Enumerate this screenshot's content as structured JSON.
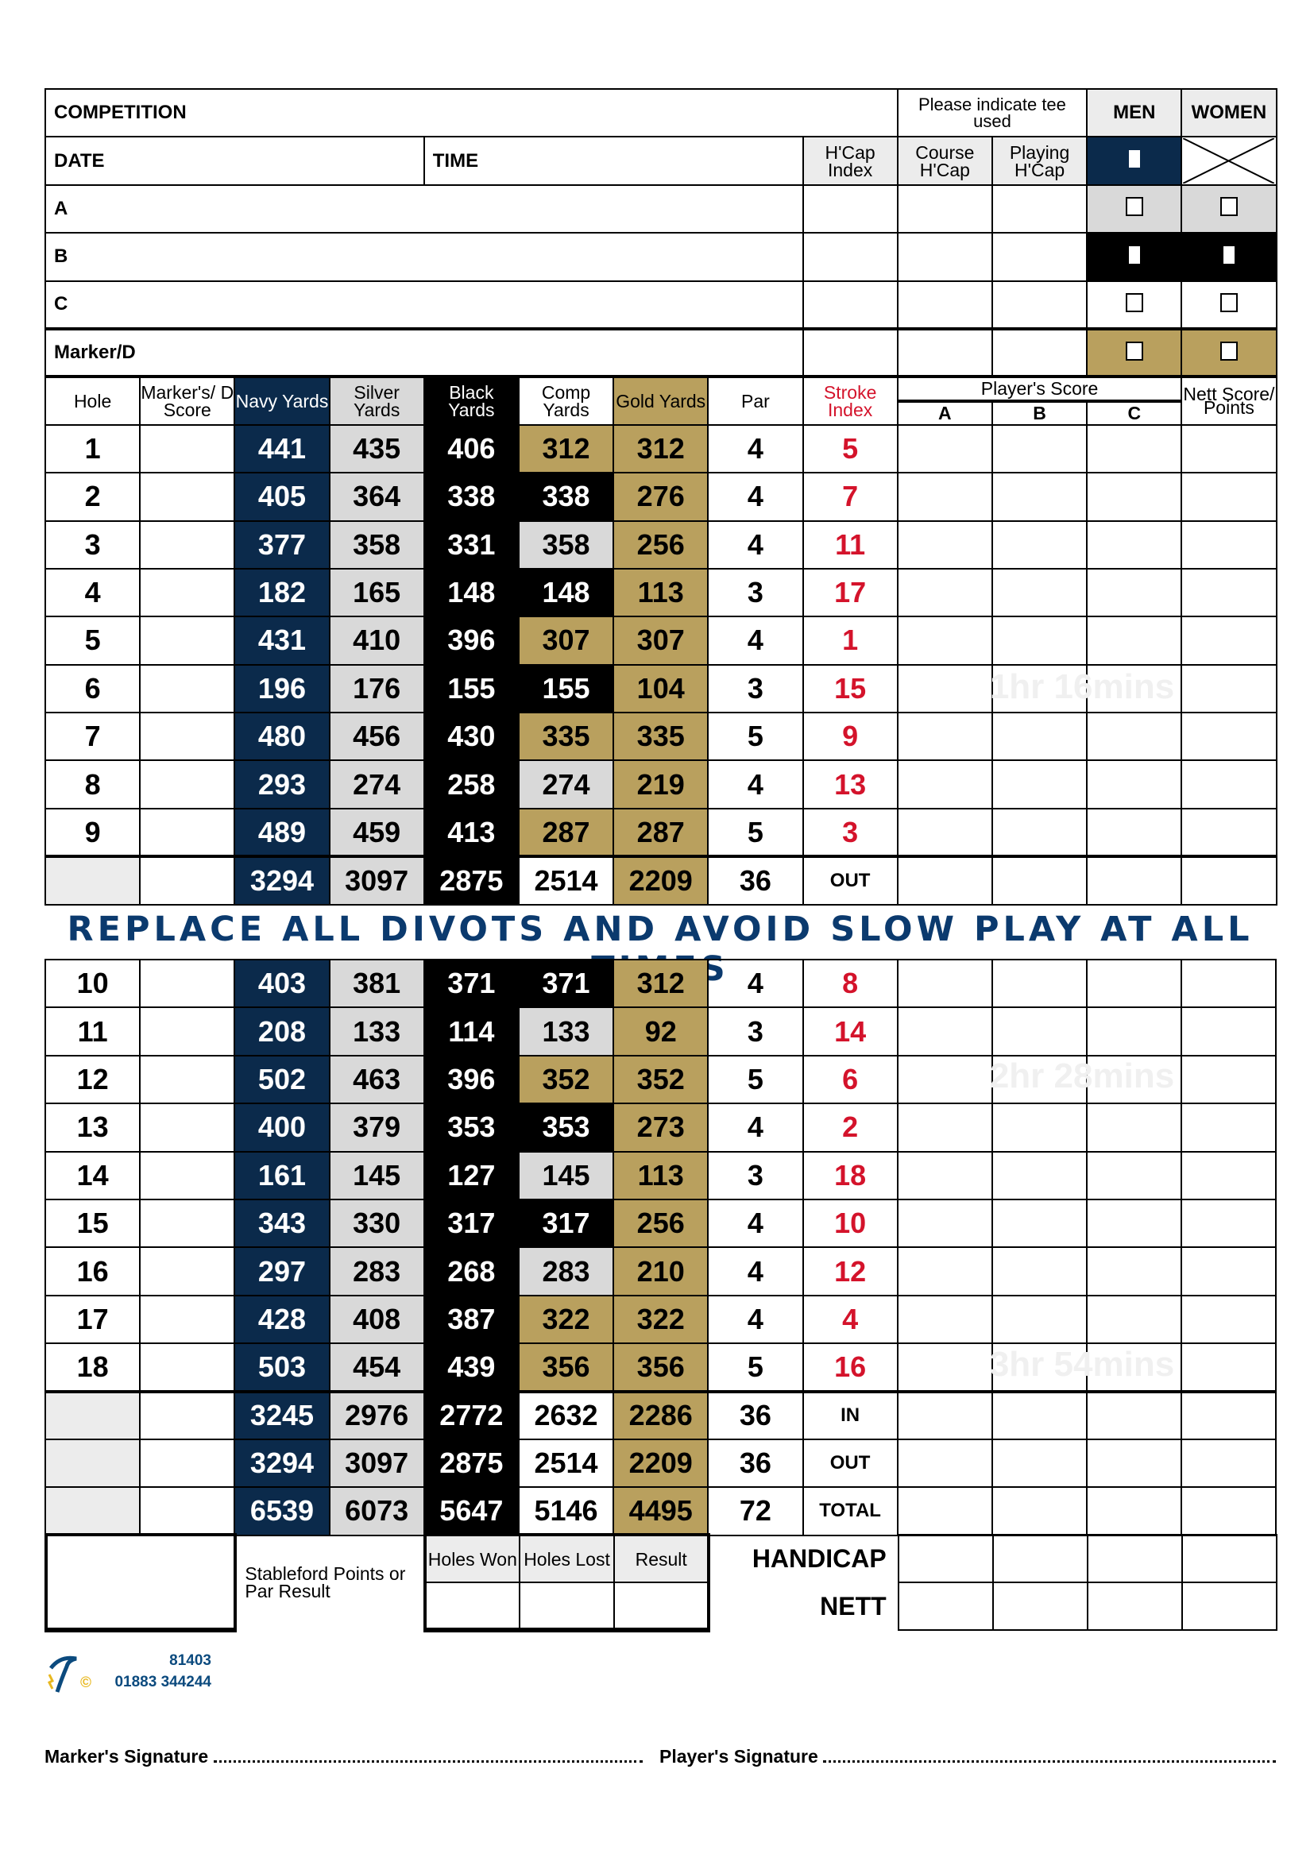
{
  "header": {
    "competition": "COMPETITION",
    "tee_prompt": "Please indicate tee used",
    "men": "MEN",
    "women": "WOMEN",
    "date": "DATE",
    "time": "TIME",
    "hcap_index": "H'Cap Index",
    "course_hcap": "Course H'Cap",
    "playing_hcap": "Playing H'Cap",
    "players": [
      {
        "label": "A",
        "tee_color": "#d9d9d9"
      },
      {
        "label": "B",
        "tee_color": "#000000"
      },
      {
        "label": "C",
        "tee_color": "#ffffff"
      },
      {
        "label": "Marker/D",
        "tee_color": "#b9a05e"
      }
    ]
  },
  "columns": {
    "hole": "Hole",
    "marker": "Marker's/ D Score",
    "navy": "Navy Yards",
    "silver": "Silver Yards",
    "black": "Black Yards",
    "comp": "Comp Yards",
    "gold": "Gold Yards",
    "par": "Par",
    "stroke_index": "Stroke Index",
    "players_score": "Player's Score",
    "score_a": "A",
    "score_b": "B",
    "score_c": "C",
    "nett": "Nett Score/ Points"
  },
  "colors": {
    "navy": "#0b2a4b",
    "silver": "#d9d9d9",
    "black": "#000000",
    "gold": "#b9a05e",
    "stroke_index": "#d4132b",
    "banner": "#0b3a6e"
  },
  "front_nine": [
    {
      "hole": "1",
      "navy": "441",
      "silver": "435",
      "black": "406",
      "comp": "312",
      "comp_tee": "gold",
      "gold": "312",
      "par": "4",
      "si": "5"
    },
    {
      "hole": "2",
      "navy": "405",
      "silver": "364",
      "black": "338",
      "comp": "338",
      "comp_tee": "black",
      "gold": "276",
      "par": "4",
      "si": "7"
    },
    {
      "hole": "3",
      "navy": "377",
      "silver": "358",
      "black": "331",
      "comp": "358",
      "comp_tee": "silver",
      "gold": "256",
      "par": "4",
      "si": "11"
    },
    {
      "hole": "4",
      "navy": "182",
      "silver": "165",
      "black": "148",
      "comp": "148",
      "comp_tee": "black",
      "gold": "113",
      "par": "3",
      "si": "17"
    },
    {
      "hole": "5",
      "navy": "431",
      "silver": "410",
      "black": "396",
      "comp": "307",
      "comp_tee": "gold",
      "gold": "307",
      "par": "4",
      "si": "1"
    },
    {
      "hole": "6",
      "navy": "196",
      "silver": "176",
      "black": "155",
      "comp": "155",
      "comp_tee": "black",
      "gold": "104",
      "par": "3",
      "si": "15"
    },
    {
      "hole": "7",
      "navy": "480",
      "silver": "456",
      "black": "430",
      "comp": "335",
      "comp_tee": "gold",
      "gold": "335",
      "par": "5",
      "si": "9"
    },
    {
      "hole": "8",
      "navy": "293",
      "silver": "274",
      "black": "258",
      "comp": "274",
      "comp_tee": "silver",
      "gold": "219",
      "par": "4",
      "si": "13"
    },
    {
      "hole": "9",
      "navy": "489",
      "silver": "459",
      "black": "413",
      "comp": "287",
      "comp_tee": "gold",
      "gold": "287",
      "par": "5",
      "si": "3"
    }
  ],
  "out_total": {
    "navy": "3294",
    "silver": "3097",
    "black": "2875",
    "comp": "2514",
    "gold": "2209",
    "par": "36",
    "label": "OUT"
  },
  "banner": "REPLACE ALL DIVOTS AND AVOID SLOW PLAY AT ALL TIMES",
  "back_nine": [
    {
      "hole": "10",
      "navy": "403",
      "silver": "381",
      "black": "371",
      "comp": "371",
      "comp_tee": "black",
      "gold": "312",
      "par": "4",
      "si": "8"
    },
    {
      "hole": "11",
      "navy": "208",
      "silver": "133",
      "black": "114",
      "comp": "133",
      "comp_tee": "silver",
      "gold": "92",
      "par": "3",
      "si": "14"
    },
    {
      "hole": "12",
      "navy": "502",
      "silver": "463",
      "black": "396",
      "comp": "352",
      "comp_tee": "gold",
      "gold": "352",
      "par": "5",
      "si": "6"
    },
    {
      "hole": "13",
      "navy": "400",
      "silver": "379",
      "black": "353",
      "comp": "353",
      "comp_tee": "black",
      "gold": "273",
      "par": "4",
      "si": "2"
    },
    {
      "hole": "14",
      "navy": "161",
      "silver": "145",
      "black": "127",
      "comp": "145",
      "comp_tee": "silver",
      "gold": "113",
      "par": "3",
      "si": "18"
    },
    {
      "hole": "15",
      "navy": "343",
      "silver": "330",
      "black": "317",
      "comp": "317",
      "comp_tee": "black",
      "gold": "256",
      "par": "4",
      "si": "10"
    },
    {
      "hole": "16",
      "navy": "297",
      "silver": "283",
      "black": "268",
      "comp": "283",
      "comp_tee": "silver",
      "gold": "210",
      "par": "4",
      "si": "12"
    },
    {
      "hole": "17",
      "navy": "428",
      "silver": "408",
      "black": "387",
      "comp": "322",
      "comp_tee": "gold",
      "gold": "322",
      "par": "4",
      "si": "4"
    },
    {
      "hole": "18",
      "navy": "503",
      "silver": "454",
      "black": "439",
      "comp": "356",
      "comp_tee": "gold",
      "gold": "356",
      "par": "5",
      "si": "16"
    }
  ],
  "totals": [
    {
      "navy": "3245",
      "silver": "2976",
      "black": "2772",
      "comp": "2632",
      "gold": "2286",
      "par": "36",
      "label": "IN"
    },
    {
      "navy": "3294",
      "silver": "3097",
      "black": "2875",
      "comp": "2514",
      "gold": "2209",
      "par": "36",
      "label": "OUT"
    },
    {
      "navy": "6539",
      "silver": "6073",
      "black": "5647",
      "comp": "5146",
      "gold": "4495",
      "par": "72",
      "label": "TOTAL"
    }
  ],
  "pace_marks": [
    "1hr 16mins",
    "2hr 28mins",
    "3hr 54mins"
  ],
  "footer": {
    "stableford": "Stableford Points or Par Result",
    "holes_won": "Holes Won",
    "holes_lost": "Holes Lost",
    "result": "Result",
    "handicap": "HANDICAP",
    "nett": "NETT",
    "print_ref": "81403",
    "printer_phone": "01883 344244",
    "markers_signature": "Marker's Signature",
    "players_signature": "Player's Signature"
  }
}
